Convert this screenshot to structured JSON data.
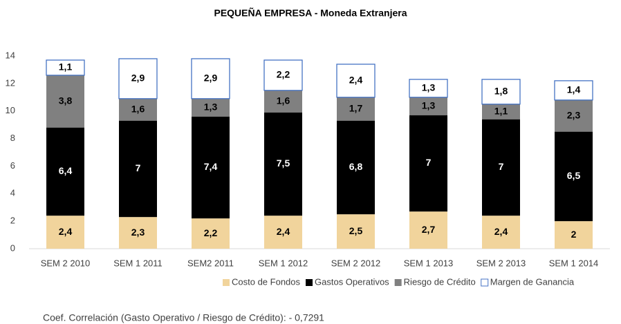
{
  "chart_data": {
    "type": "stacked_bar",
    "title": "PEQUEÑA EMPRESA - Moneda Extranjera",
    "categories": [
      "SEM 2 2010",
      "SEM 1 2011",
      "SEM2 2011",
      "SEM 1 2012",
      "SEM 2 2012",
      "SEM 1 2013",
      "SEM 2 2013",
      "SEM 1 2014"
    ],
    "series": [
      {
        "name": "Costo de Fondos",
        "color": "#f1d49c",
        "values": [
          2.4,
          2.3,
          2.2,
          2.4,
          2.5,
          2.7,
          2.4,
          2
        ],
        "value_labels": [
          "2,4",
          "2,3",
          "2,2",
          "2,4",
          "2,5",
          "2,7",
          "2,4",
          "2"
        ]
      },
      {
        "name": "Gastos Operativos",
        "color": "#000000",
        "values": [
          6.4,
          7,
          7.4,
          7.5,
          6.8,
          7,
          7,
          6.5
        ],
        "value_labels": [
          "6,4",
          "7",
          "7,4",
          "7,5",
          "6,8",
          "7",
          "7",
          "6,5"
        ]
      },
      {
        "name": "Riesgo de Crédito",
        "color": "#808080",
        "values": [
          3.8,
          1.6,
          1.3,
          1.6,
          1.7,
          1.3,
          1.1,
          2.3
        ],
        "value_labels": [
          "3,8",
          "1,6",
          "1,3",
          "1,6",
          "1,7",
          "1,3",
          "1,1",
          "2,3"
        ]
      },
      {
        "name": "Margen de Ganancia",
        "color": "#ffffff",
        "edgecolor": "#4472c4",
        "values": [
          1.1,
          2.9,
          2.9,
          2.2,
          2.4,
          1.3,
          1.8,
          1.4
        ],
        "value_labels": [
          "1,1",
          "2,9",
          "2,9",
          "2,2",
          "2,4",
          "1,3",
          "1,8",
          "1,4"
        ]
      }
    ],
    "ylim": [
      0,
      14
    ],
    "yticks": [
      0,
      2,
      4,
      6,
      8,
      10,
      12,
      14
    ],
    "grid": false,
    "legend": "bottom-right",
    "annotation": "Coef. Correlación (Gasto Operativo / Riesgo de Crédito): - 0,7291"
  }
}
